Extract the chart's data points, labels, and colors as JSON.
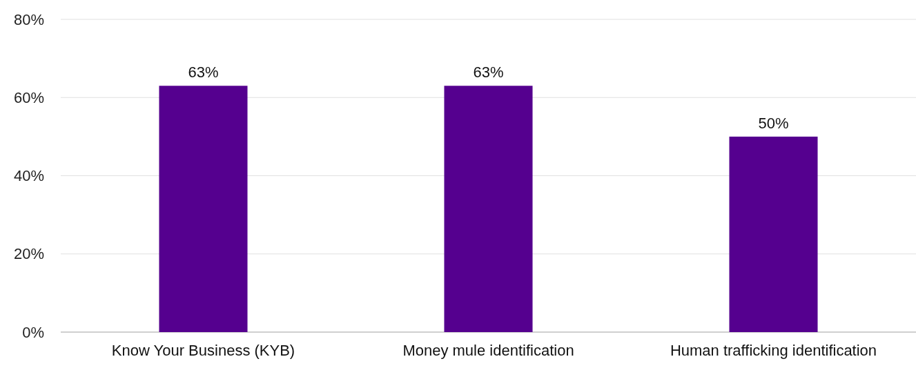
{
  "chart_data": {
    "type": "bar",
    "categories": [
      "Know Your Business (KYB)",
      "Money mule identification",
      "Human trafficking identification"
    ],
    "values": [
      63,
      63,
      50
    ],
    "color": "#55008f",
    "ylim": [
      0,
      80
    ],
    "yticks": [
      {
        "value": 0,
        "label": "0%"
      },
      {
        "value": 20,
        "label": "20%"
      },
      {
        "value": 40,
        "label": "40%"
      },
      {
        "value": 60,
        "label": "60%"
      },
      {
        "value": 80,
        "label": "80%"
      }
    ],
    "grid": "y",
    "data_labels": true,
    "value_labels": [
      "63%",
      "63%",
      "50%"
    ]
  }
}
